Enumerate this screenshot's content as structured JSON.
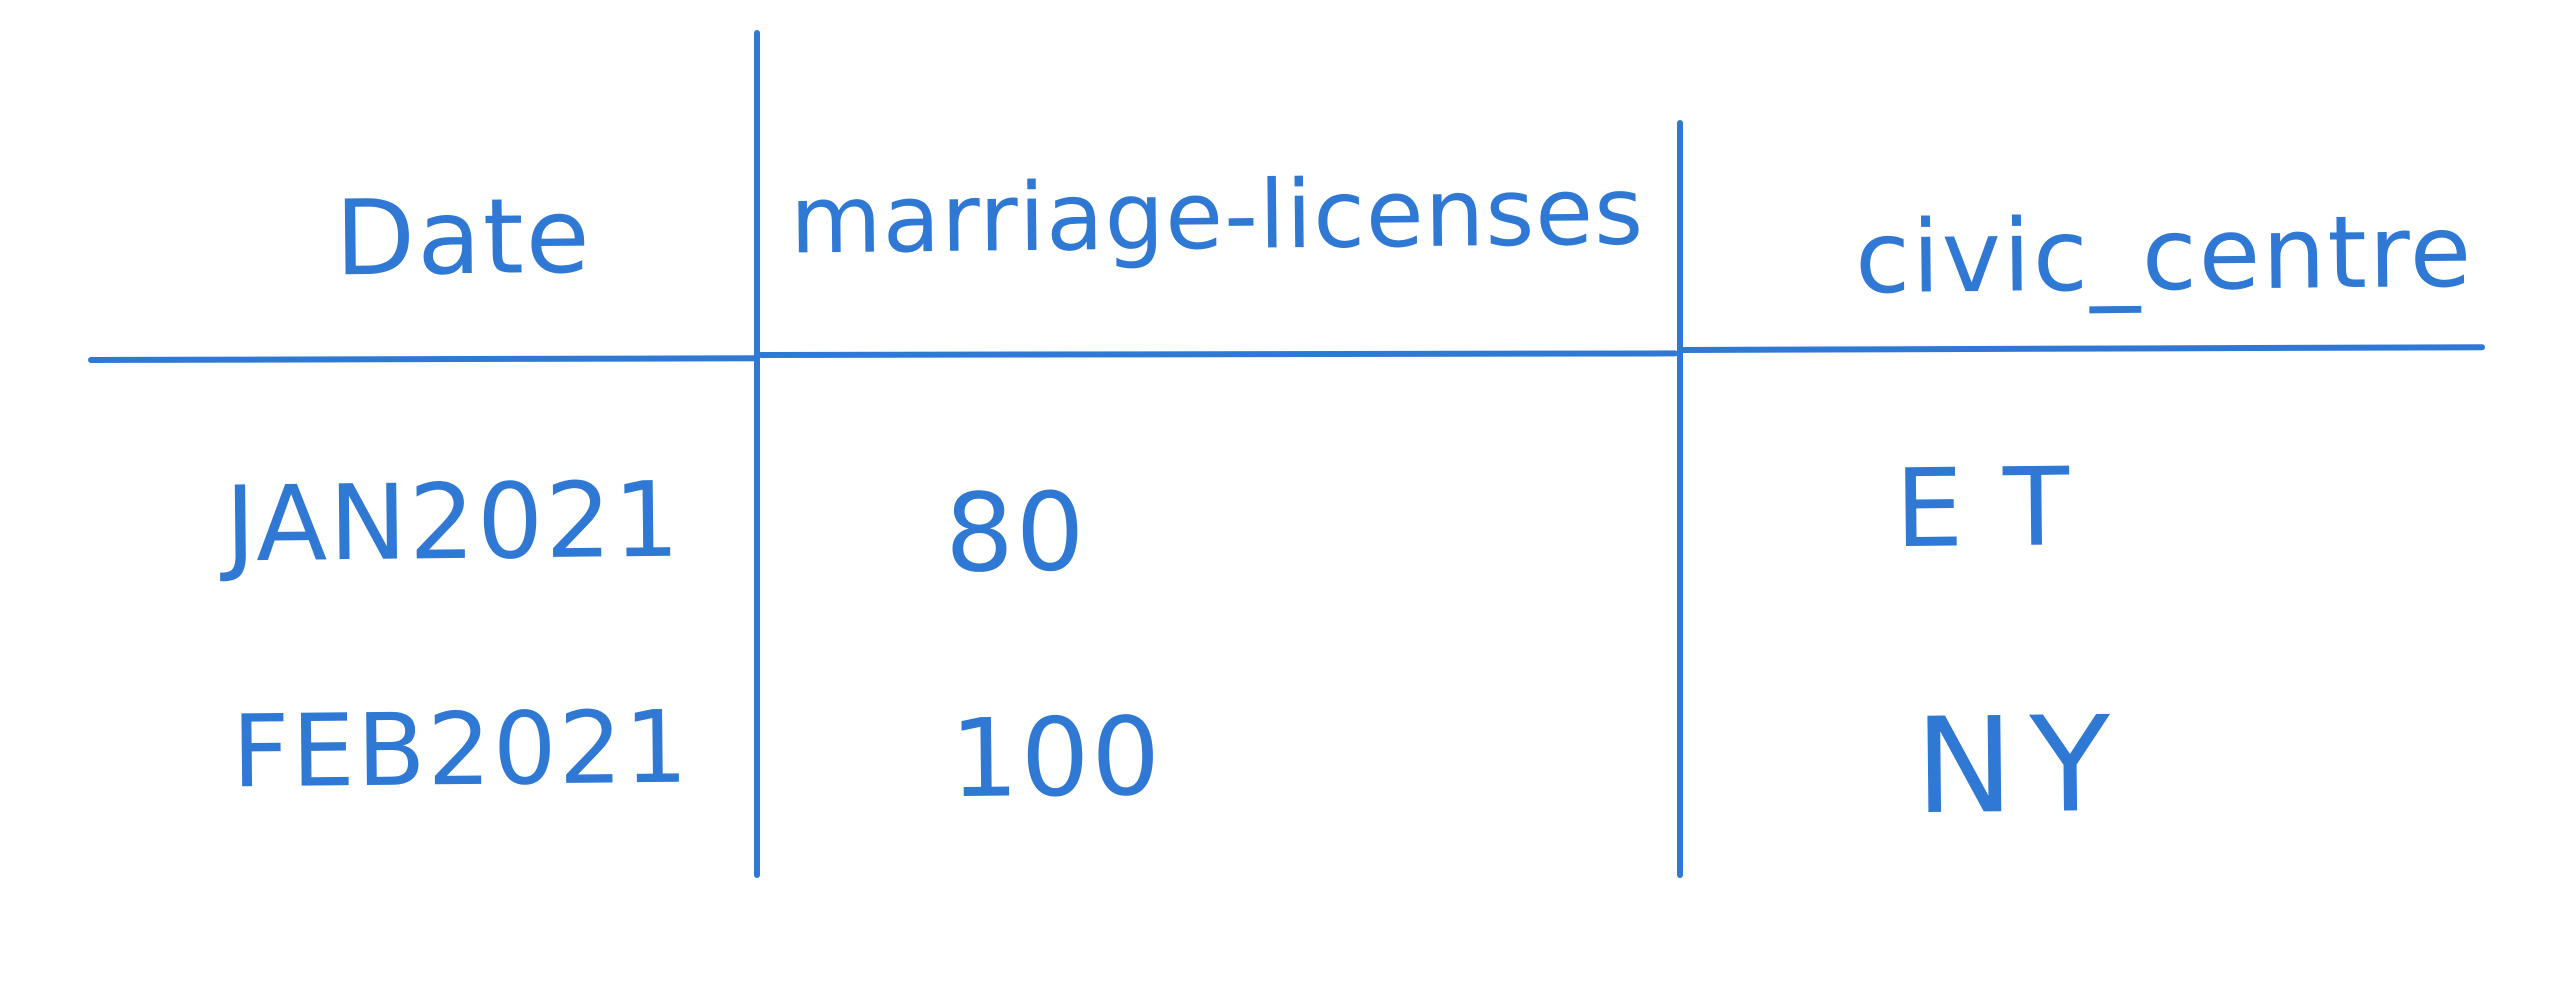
{
  "table": {
    "colors": {
      "ink": "#2f78d3",
      "background": "#ffffff"
    },
    "headers": [
      "Date",
      "marriage-licenses",
      "civic_centre"
    ],
    "rows": [
      [
        "JAN2021",
        "80",
        "ET"
      ],
      [
        "FEB2021",
        "100",
        "NY"
      ]
    ]
  }
}
